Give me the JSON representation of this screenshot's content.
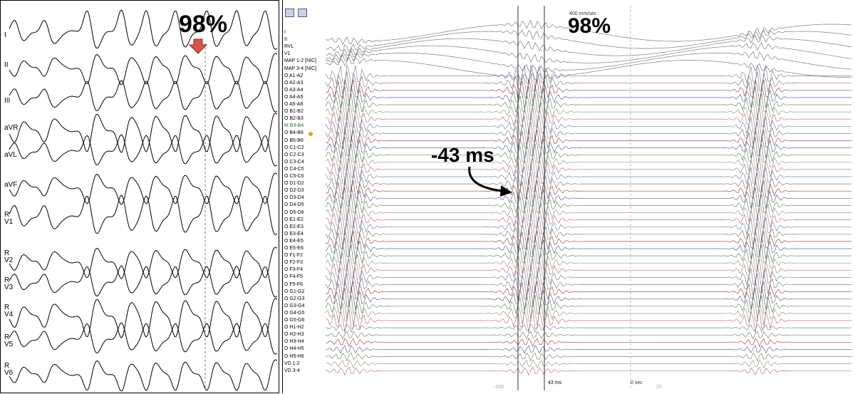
{
  "left_panel": {
    "leads": [
      "I",
      "II",
      "III",
      "aVR",
      "aVL",
      "aVF",
      "R\nV1",
      "R\nV2",
      "R\nV3",
      "R\nV4",
      "R\nV5",
      "R\nV6"
    ],
    "annotation": "98%",
    "arrow_color": "#d9534f"
  },
  "right_panel": {
    "toolbar_icons": [
      "zoom-icon",
      "settings-icon"
    ],
    "scale_text": "400 mm/sec",
    "annotation_percent": "98%",
    "annotation_delay": "-43 ms",
    "measure_text": "43 ms",
    "time_text": "0 sec",
    "bottom_left_tick": "-200",
    "bottom_right_tick": "20",
    "channels": [
      "I",
      "II",
      "RVL",
      "V1",
      "MAP 1-2 [NIC]",
      "MAP 3-4 [NIC]",
      "O A1-A2",
      "O A2-A3",
      "O A3-A4",
      "O A4-A5",
      "O A5-A6",
      "O B1-B2",
      "O B2-B3",
      "M B3-B4",
      "O B4-B6",
      "O B5-B6",
      "O C1-C2",
      "O C2-C3",
      "O C3-C4",
      "O C4-C5",
      "O C5-C6",
      "O D1-D2",
      "O D2-D3",
      "O D3-D4",
      "O D4-D5",
      "O D5-D6",
      "O E1-E2",
      "O E2-E3",
      "O E3-E4",
      "O E4-E5",
      "O E5-E6",
      "O F1-F2",
      "O F2-F3",
      "O F3-F4",
      "O F4-F5",
      "O F5-F6",
      "O G1-G2",
      "O G2-G3",
      "O G3-G4",
      "O G4-G5",
      "O G5-G6",
      "O H1-H2",
      "O H2-H3",
      "O H3-H4",
      "O H4-H5",
      "O H5-H6",
      "VD 1-2",
      "VD 3-4"
    ]
  }
}
